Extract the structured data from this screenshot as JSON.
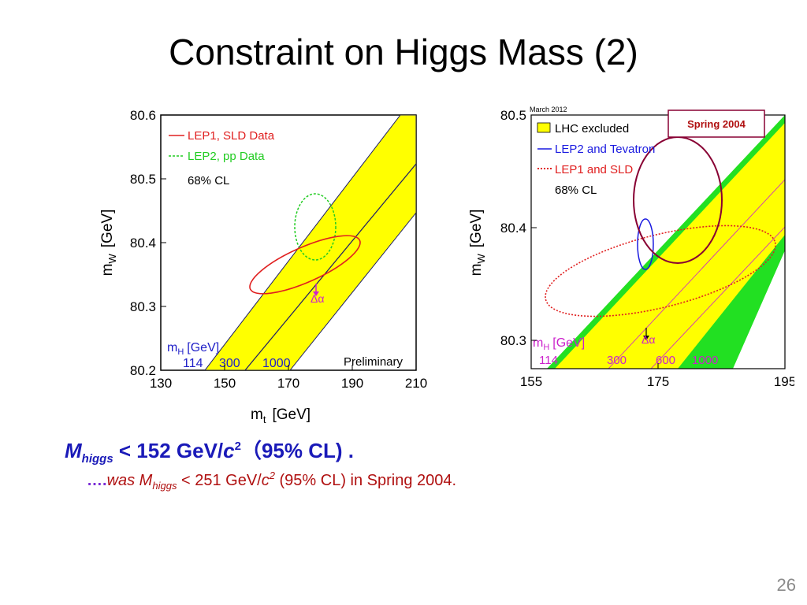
{
  "slide": {
    "title": "Constraint on Higgs Mass (2)",
    "page_number": "26"
  },
  "left_plot": {
    "y_ticks": [
      "80.6",
      "80.5",
      "80.4",
      "80.3",
      "80.2"
    ],
    "x_ticks": [
      "130",
      "150",
      "170",
      "190",
      "210"
    ],
    "ylabel_main": "m",
    "ylabel_sub": "W",
    "ylabel_unit": "[GeV]",
    "xlabel_main": "m",
    "xlabel_sub": "t",
    "xlabel_unit": "[GeV]",
    "legend": [
      "LEP1, SLD Data",
      "LEP2, pp Data",
      "68% CL"
    ],
    "mh_label_main": "m",
    "mh_label_sub": "H",
    "mh_label_unit": "[GeV]",
    "mh_values": [
      "114",
      "300",
      "1000"
    ],
    "alpha_label": "Δα",
    "preliminary_label": "Preliminary"
  },
  "right_plot": {
    "date_label": "March 2012",
    "y_ticks": [
      "80.5",
      "80.4",
      "80.3"
    ],
    "x_ticks": [
      "155",
      "175",
      "195"
    ],
    "ylabel_main": "m",
    "ylabel_sub": "W",
    "ylabel_unit": "[GeV]",
    "legend": [
      "LHC excluded",
      "LEP2 and Tevatron",
      "LEP1 and SLD",
      "68% CL"
    ],
    "mh_label_main": "m",
    "mh_label_sub": "H",
    "mh_label_unit": "[GeV]",
    "mh_values": [
      "114",
      "300",
      "600",
      "1000"
    ],
    "alpha_label": "Δα",
    "spring_label": "Spring 2004"
  },
  "result": {
    "symbol": "M",
    "subscript": "higgs",
    "relation": " < 152 GeV/",
    "c_symbol": "c",
    "exponent": "2",
    "cl_text": "（95% CL) ."
  },
  "history": {
    "dots": "….",
    "was": "was M",
    "subscript": "higgs",
    "relation": " < 251 GeV/",
    "c_symbol": "c",
    "exponent": "2",
    "tail": " (95% CL) in Spring 2004."
  },
  "colors": {
    "band_yellow": "#ffff00",
    "band_green": "#22e022",
    "lep1_red": "#e02020",
    "lep2_green": "#22cc22",
    "lep2_blue": "#1a1ae0",
    "mh_blue": "#2020c8",
    "mh_magenta": "#cc22cc",
    "spring_circle": "#880033",
    "result_blue": "#1a1ab8",
    "history_red": "#b01010"
  }
}
